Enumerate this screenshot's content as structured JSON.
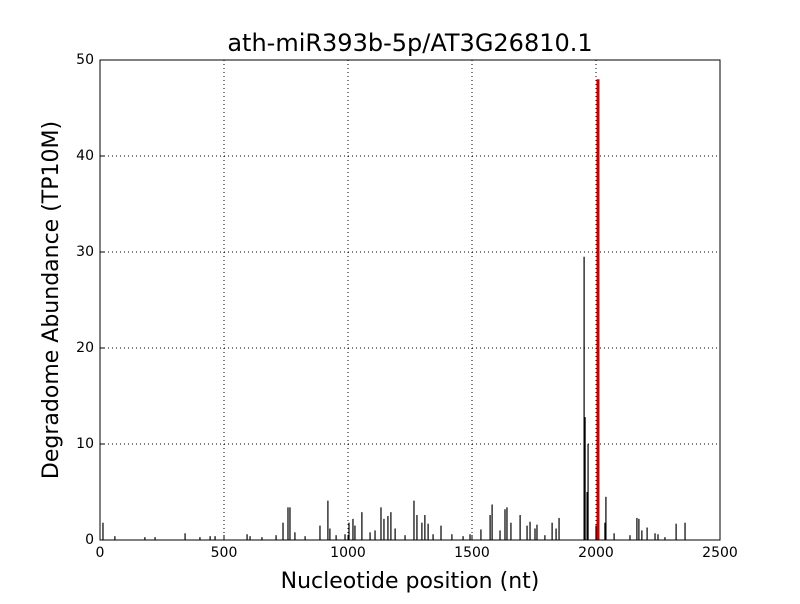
{
  "chart_data": {
    "type": "spike",
    "title": "ath-miR393b-5p/AT3G26810.1",
    "x_label": "Nucleotide position (nt)",
    "y_label": "Degradome Abundance (TP10M)",
    "xlim": [
      0,
      2500
    ],
    "xticks": [
      0,
      500,
      1000,
      1500,
      2000,
      2500
    ],
    "ylim": [
      0,
      50
    ],
    "yticks": [
      0,
      10,
      20,
      30,
      40,
      50
    ],
    "grid": true,
    "color": "#000000",
    "x": [
      12,
      60,
      181,
      222,
      343,
      403,
      444,
      464,
      593,
      605,
      653,
      710,
      738,
      758,
      766,
      786,
      827,
      887,
      919,
      927,
      952,
      988,
      1004,
      1020,
      1028,
      1056,
      1089,
      1109,
      1133,
      1145,
      1161,
      1173,
      1190,
      1230,
      1266,
      1278,
      1298,
      1310,
      1323,
      1343,
      1375,
      1419,
      1464,
      1492,
      1536,
      1573,
      1581,
      1613,
      1633,
      1641,
      1657,
      1694,
      1722,
      1734,
      1754,
      1762,
      1794,
      1823,
      1839,
      1851,
      1952,
      1956,
      1964,
      1968,
      2000,
      2036,
      2040,
      2073,
      2137,
      2165,
      2173,
      2185,
      2206,
      2238,
      2250,
      2278,
      2323,
      2359
    ],
    "values": [
      1.8,
      0.4,
      0.3,
      0.3,
      0.7,
      0.3,
      0.4,
      0.4,
      0.6,
      0.4,
      0.3,
      0.5,
      1.8,
      3.4,
      3.4,
      0.8,
      0.4,
      1.5,
      4.1,
      1.2,
      0.5,
      0.6,
      1.8,
      2.2,
      1.5,
      2.9,
      0.8,
      1.0,
      3.4,
      2.2,
      2.5,
      2.9,
      1.2,
      0.5,
      4.1,
      2.6,
      1.8,
      2.6,
      1.7,
      0.6,
      1.5,
      0.6,
      0.4,
      0.6,
      1.1,
      2.6,
      3.7,
      1.0,
      3.2,
      3.4,
      1.8,
      2.6,
      1.5,
      1.9,
      1.2,
      1.6,
      0.5,
      1.8,
      1.2,
      2.3,
      29.5,
      12.8,
      5.0,
      10.0,
      1.5,
      1.8,
      4.5,
      0.7,
      0.5,
      2.3,
      2.2,
      1.0,
      1.3,
      0.7,
      0.6,
      0.3,
      1.7,
      1.8
    ],
    "highlight": {
      "x": [
        2008
      ],
      "values": [
        48
      ],
      "color": "#cc0000"
    }
  }
}
